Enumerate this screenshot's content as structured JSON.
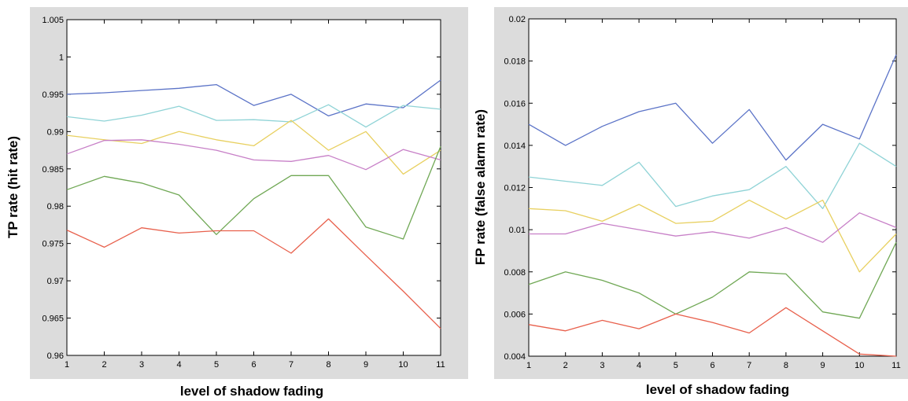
{
  "chart_data": [
    {
      "type": "line",
      "title": "",
      "xlabel": "level of shadow fading",
      "ylabel": "TP rate (hit rate)",
      "x": [
        1,
        2,
        3,
        4,
        5,
        6,
        7,
        8,
        9,
        10,
        11
      ],
      "xticks": [
        "1",
        "2",
        "3",
        "4",
        "5",
        "6",
        "7",
        "8",
        "9",
        "10",
        "11"
      ],
      "yticks": [
        "0.96",
        "0.965",
        "0.97",
        "0.975",
        "0.98",
        "0.985",
        "0.99",
        "0.995",
        "1",
        "1.005"
      ],
      "xlim": [
        1,
        11
      ],
      "ylim": [
        0.96,
        1.005
      ],
      "grid": false,
      "legend": "none",
      "series": [
        {
          "color": "#5b73c7",
          "values": [
            0.995,
            0.9952,
            0.9955,
            0.9958,
            0.9963,
            0.9935,
            0.995,
            0.9921,
            0.9937,
            0.9932,
            0.9969
          ]
        },
        {
          "color": "#8fd3d6",
          "values": [
            0.992,
            0.9914,
            0.9922,
            0.9934,
            0.9915,
            0.9916,
            0.9913,
            0.9936,
            0.9906,
            0.9935,
            0.993
          ]
        },
        {
          "color": "#e8d060",
          "values": [
            0.9895,
            0.9889,
            0.9884,
            0.99,
            0.9889,
            0.9881,
            0.9915,
            0.9875,
            0.99,
            0.9843,
            0.9875
          ]
        },
        {
          "color": "#c77fc7",
          "values": [
            0.987,
            0.9888,
            0.9889,
            0.9883,
            0.9875,
            0.9862,
            0.986,
            0.9868,
            0.9849,
            0.9876,
            0.9862
          ]
        },
        {
          "color": "#70a855",
          "values": [
            0.9822,
            0.984,
            0.9831,
            0.9815,
            0.9762,
            0.981,
            0.9841,
            0.9841,
            0.9772,
            0.9756,
            0.988
          ]
        },
        {
          "color": "#e8604c",
          "values": [
            0.9768,
            0.9745,
            0.9771,
            0.9764,
            0.9767,
            0.9767,
            0.9737,
            0.9783,
            0.9734,
            0.9686,
            0.9636
          ]
        }
      ]
    },
    {
      "type": "line",
      "title": "",
      "xlabel": "level of shadow fading",
      "ylabel": "FP rate (false alarm rate)",
      "x": [
        1,
        2,
        3,
        4,
        5,
        6,
        7,
        8,
        9,
        10,
        11
      ],
      "xticks": [
        "1",
        "2",
        "3",
        "4",
        "5",
        "6",
        "7",
        "8",
        "9",
        "10",
        "11"
      ],
      "yticks": [
        "0.004",
        "0.006",
        "0.008",
        "0.01",
        "0.012",
        "0.014",
        "0.016",
        "0.018",
        "0.02"
      ],
      "xlim": [
        1,
        11
      ],
      "ylim": [
        0.004,
        0.02
      ],
      "grid": false,
      "legend": "none",
      "series": [
        {
          "color": "#5b73c7",
          "values": [
            0.015,
            0.014,
            0.0149,
            0.0156,
            0.016,
            0.0141,
            0.0157,
            0.0133,
            0.015,
            0.0143,
            0.0183
          ]
        },
        {
          "color": "#8fd3d6",
          "values": [
            0.0125,
            0.0123,
            0.0121,
            0.0132,
            0.0111,
            0.0116,
            0.0119,
            0.013,
            0.011,
            0.0141,
            0.013
          ]
        },
        {
          "color": "#e8d060",
          "values": [
            0.011,
            0.0109,
            0.0104,
            0.0112,
            0.0103,
            0.0104,
            0.0114,
            0.0105,
            0.0114,
            0.008,
            0.0098
          ]
        },
        {
          "color": "#c77fc7",
          "values": [
            0.0098,
            0.0098,
            0.0103,
            0.01,
            0.0097,
            0.0099,
            0.0096,
            0.0101,
            0.0094,
            0.0108,
            0.0101
          ]
        },
        {
          "color": "#70a855",
          "values": [
            0.0074,
            0.008,
            0.0076,
            0.007,
            0.006,
            0.0068,
            0.008,
            0.0079,
            0.0061,
            0.0058,
            0.0094
          ]
        },
        {
          "color": "#e8604c",
          "values": [
            0.0055,
            0.0052,
            0.0057,
            0.0053,
            0.006,
            0.0056,
            0.0051,
            0.0063,
            0.0052,
            0.0041,
            0.004
          ]
        }
      ]
    }
  ]
}
